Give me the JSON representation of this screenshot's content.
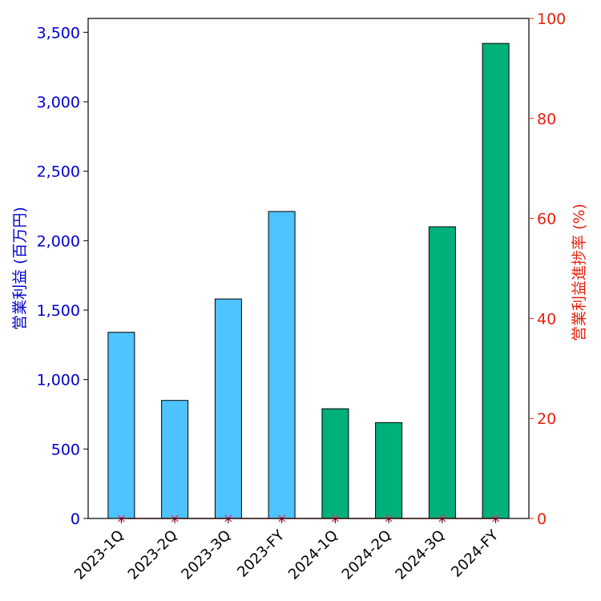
{
  "chart_data": {
    "type": "bar",
    "categories": [
      "2023-1Q",
      "2023-2Q",
      "2023-3Q",
      "2023-FY",
      "2024-1Q",
      "2024-2Q",
      "2024-3Q",
      "2024-FY"
    ],
    "series": [
      {
        "name": "営業利益",
        "axis": "left",
        "values": [
          1340,
          850,
          1580,
          2210,
          790,
          690,
          2100,
          3420
        ],
        "bar_colors": [
          "#4dc3ff",
          "#4dc3ff",
          "#4dc3ff",
          "#4dc3ff",
          "#00b07a",
          "#00b07a",
          "#00b07a",
          "#00b07a"
        ]
      },
      {
        "name": "営業利益進捗率",
        "axis": "right",
        "type": "line",
        "marker": "x",
        "values": [
          0,
          0,
          0,
          0,
          0,
          0,
          0,
          0
        ]
      }
    ],
    "ylabel_left": "営業利益 (百万円)",
    "ylabel_right": "営業利益進捗率 (%)",
    "ylim_left": [
      0,
      3600
    ],
    "ylim_right": [
      0,
      100
    ],
    "yticks_left": [
      "0",
      "500",
      "1,000",
      "1,500",
      "2,000",
      "2,500",
      "3,000",
      "3,500"
    ],
    "yticks_left_values": [
      0,
      500,
      1000,
      1500,
      2000,
      2500,
      3000,
      3500
    ],
    "yticks_right": [
      "0",
      "20",
      "40",
      "60",
      "80",
      "100"
    ],
    "yticks_right_values": [
      0,
      20,
      40,
      60,
      80,
      100
    ],
    "grid": false,
    "colors": {
      "left_axis": "#0000cc",
      "right_axis": "#e8200c",
      "line": "#c04040",
      "marker": "#e8306a",
      "bar_edge": "#000000"
    }
  }
}
